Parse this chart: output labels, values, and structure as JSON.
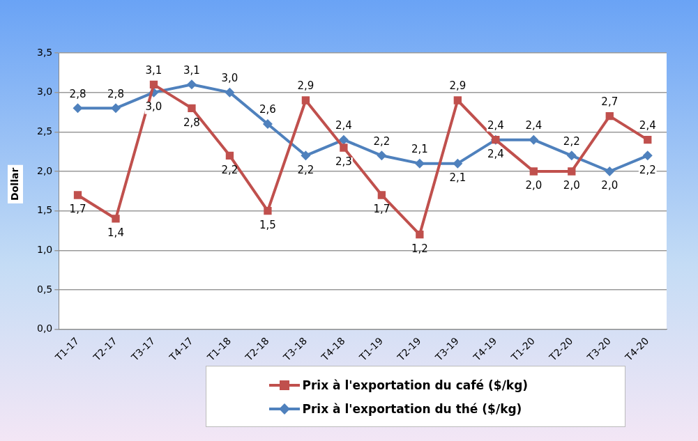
{
  "chart_data": {
    "type": "line",
    "categories": [
      "T1-17",
      "T2-17",
      "T3-17",
      "T4-17",
      "T1-18",
      "T2-18",
      "T3-18",
      "T4-18",
      "T1-19",
      "T2-19",
      "T3-19",
      "T4-19",
      "T1-20",
      "T2-20",
      "T3-20",
      "T4-20"
    ],
    "series": [
      {
        "name": "Prix à l'exportation du café ($/kg)",
        "color": "#c0504d",
        "marker": "square",
        "values": [
          1.7,
          1.4,
          3.1,
          2.8,
          2.2,
          1.5,
          2.9,
          2.3,
          1.7,
          1.2,
          2.9,
          2.4,
          2.0,
          2.0,
          2.7,
          2.4
        ],
        "value_labels": [
          "1,7",
          "1,4",
          "3,1",
          "2,8",
          "2,2",
          "1,5",
          "2,9",
          "2,3",
          "1,7",
          "1,2",
          "2,9",
          "2,4",
          "2,0",
          "2,0",
          "2,7",
          "2,4"
        ]
      },
      {
        "name": "Prix à l'exportation du thé ($/kg)",
        "color": "#4f81bd",
        "marker": "diamond",
        "values": [
          2.8,
          2.8,
          3.0,
          3.1,
          3.0,
          2.6,
          2.2,
          2.4,
          2.2,
          2.1,
          2.1,
          2.4,
          2.4,
          2.2,
          2.0,
          2.2
        ],
        "value_labels": [
          "2,8",
          "2,8",
          "3,0",
          "3,1",
          "3,0",
          "2,6",
          "2,2",
          "2,4",
          "2,2",
          "2,1",
          "2,1",
          "2,4",
          "2,4",
          "2,2",
          "2,0",
          "2,2"
        ]
      }
    ],
    "ylabel": "Dollar",
    "ylim": [
      0,
      3.5
    ],
    "yticks": [
      {
        "value": 0,
        "label": "0,0"
      },
      {
        "value": 0.5,
        "label": "0,5"
      },
      {
        "value": 1,
        "label": "1,0"
      },
      {
        "value": 1.5,
        "label": "1,5"
      },
      {
        "value": 2,
        "label": "2,0"
      },
      {
        "value": 2.5,
        "label": "2,5"
      },
      {
        "value": 3,
        "label": "3,0"
      },
      {
        "value": 3.5,
        "label": "3,5"
      }
    ],
    "grid": "y",
    "legend": "bottom"
  }
}
